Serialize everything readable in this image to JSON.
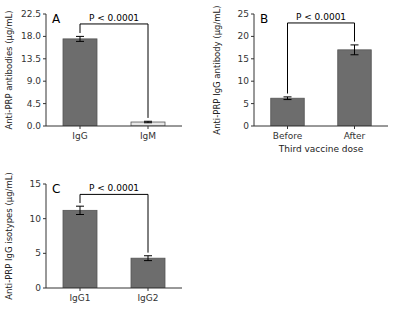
{
  "chart_data": [
    {
      "type": "bar",
      "title": "A",
      "categories": [
        "IgG",
        "IgM"
      ],
      "values": [
        17.5,
        0.8
      ],
      "errors": [
        0.5,
        0.15
      ],
      "colors": [
        "#6d6d6d",
        "#e8e8e8"
      ],
      "y_label": "Anti-PRP antibodies (μg/mL)",
      "ylim": [
        0,
        22.5
      ],
      "yticks": [
        {
          "value": 0,
          "label": "0.0"
        },
        4.5,
        {
          "value": 9,
          "label": "9.0"
        },
        13.5,
        {
          "value": 18,
          "label": "18.0"
        },
        22.5
      ],
      "annotations": [
        {
          "text": "P < 0.0001",
          "y": 20.5
        }
      ],
      "grid": false
    },
    {
      "type": "bar",
      "title": "B",
      "categories": [
        "Before",
        "After"
      ],
      "values": [
        6.2,
        17.0
      ],
      "errors": [
        0.3,
        1.1
      ],
      "colors": [
        "#6d6d6d",
        "#6d6d6d"
      ],
      "y_label": "Anti-PRP IgG antibody (μg/mL)",
      "x_label": "Third vaccine dose",
      "ylim": [
        0,
        25
      ],
      "yticks": [
        0,
        5,
        10,
        15,
        20,
        25
      ],
      "annotations": [
        {
          "text": "P < 0.0001",
          "y": 23.0
        }
      ],
      "grid": false
    },
    {
      "type": "bar",
      "title": "C",
      "categories": [
        "IgG1",
        "IgG2"
      ],
      "values": [
        11.2,
        4.3
      ],
      "errors": [
        0.6,
        0.35
      ],
      "colors": [
        "#6d6d6d",
        "#6d6d6d"
      ],
      "y_label": "Anti-PRP IgG isotypes (μg/mL)",
      "ylim": [
        0,
        15
      ],
      "yticks": [
        0,
        5,
        10,
        15
      ],
      "annotations": [
        {
          "text": "P < 0.0001",
          "y": 13.5
        }
      ],
      "grid": false
    }
  ]
}
